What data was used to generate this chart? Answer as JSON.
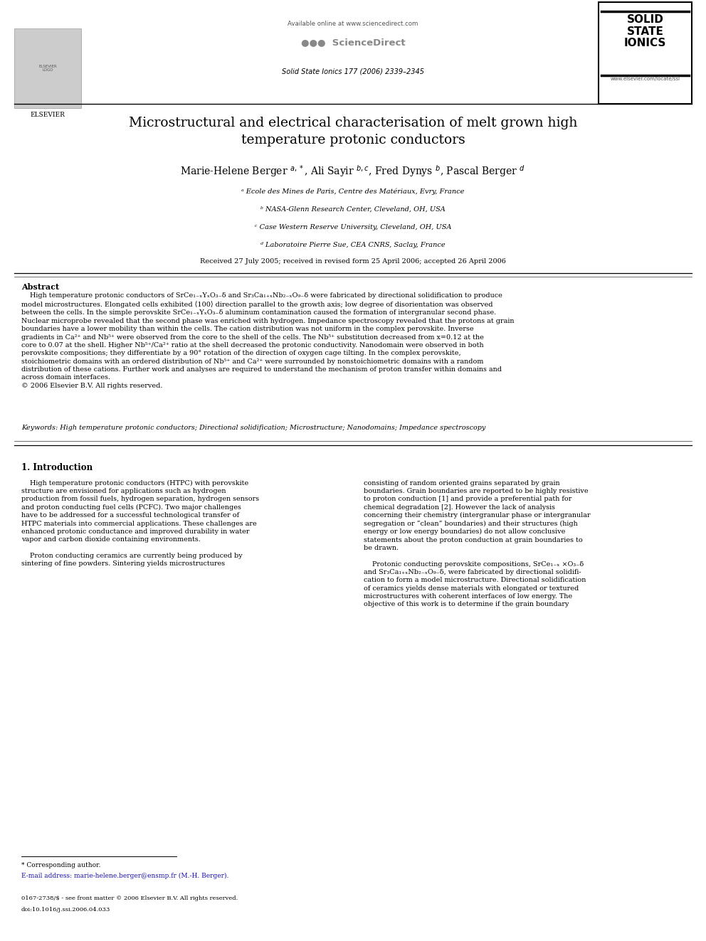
{
  "bg_color": "#ffffff",
  "page_width": 9.92,
  "page_height": 13.23,
  "header": {
    "elsevier_text": "ELSEVIER",
    "available_online": "Available online at www.sciencedirect.com",
    "sciencedirect": "ScienceDirect",
    "journal_info": "Solid State Ionics 177 (2006) 2339–2345",
    "solid_state": "SOLID\nSTATE\nIONICS",
    "website": "www.elsevier.com/locate/ssi"
  },
  "title": "Microstructural and electrical characterisation of melt grown high\ntemperature protonic conductors",
  "authors_plain": "Marie-Helene Berger",
  "affiliations": [
    "ᵃ Ecole des Mines de Paris, Centre des Matériaux, Evry, France",
    "ᵇ NASA-Glenn Research Center, Cleveland, OH, USA",
    "ᶜ Case Western Reserve University, Cleveland, OH, USA",
    "ᵈ Laboratoire Pierre Sue, CEA CNRS, Saclay, France"
  ],
  "received": "Received 27 July 2005; received in revised form 25 April 2006; accepted 26 April 2006",
  "abstract_title": "Abstract",
  "keywords": "Keywords: High temperature protonic conductors; Directional solidification; Microstructure; Nanodomains; Impedance spectroscopy",
  "section1_title": "1. Introduction",
  "footnote_corresponding": "* Corresponding author.",
  "footnote_email": "E-mail address: marie-helene.berger@ensmp.fr (M.-H. Berger).",
  "footnote_issn": "0167-2738/$ - see front matter © 2006 Elsevier B.V. All rights reserved.",
  "footnote_doi": "doi:10.1016/j.ssi.2006.04.033"
}
